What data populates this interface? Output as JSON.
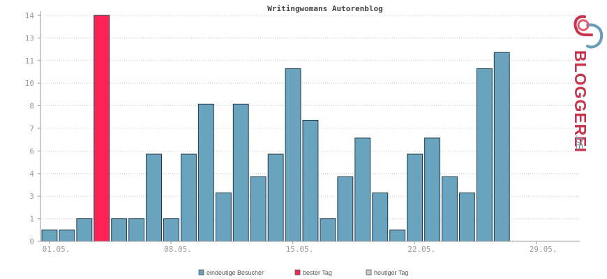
{
  "chart_data": {
    "type": "bar",
    "title": "Writingwomans Autorenblog",
    "xlabel": "",
    "ylabel": "",
    "y_tick_labels": [
      "0",
      "1",
      "3",
      "4",
      "6",
      "7",
      "8",
      "10",
      "11",
      "13",
      "14"
    ],
    "x_tick_labels": [
      "01.05.",
      "08.05.",
      "15.05.",
      "22.05.",
      "29.05."
    ],
    "days": 31,
    "values": [
      0.7,
      0.7,
      1.4,
      14,
      1.4,
      1.4,
      5.4,
      1.4,
      5.4,
      8.5,
      3.0,
      8.5,
      4.0,
      5.4,
      10.7,
      7.5,
      1.4,
      4.0,
      6.4,
      3.0,
      0.7,
      5.4,
      6.4,
      4.0,
      3.0,
      10.7,
      11.7
    ],
    "highlight_index": 3,
    "grid": true,
    "legend_position": "bottom-center",
    "colors": {
      "bar": "#6aa3bd",
      "best": "#ff2255",
      "today": "#cccccc",
      "bar_border": "#1f3d4c",
      "grid": "#cccccc",
      "axis": "#999999"
    },
    "legend": [
      {
        "label": "eindeutige Besucher",
        "color": "#6aa3bd"
      },
      {
        "label": "bester Tag",
        "color": "#ff2255"
      },
      {
        "label": "heutiger Tag",
        "color": "#cccccc"
      }
    ]
  },
  "logo": {
    "text": "BLOGGEREI",
    "suffix": ".DE"
  }
}
